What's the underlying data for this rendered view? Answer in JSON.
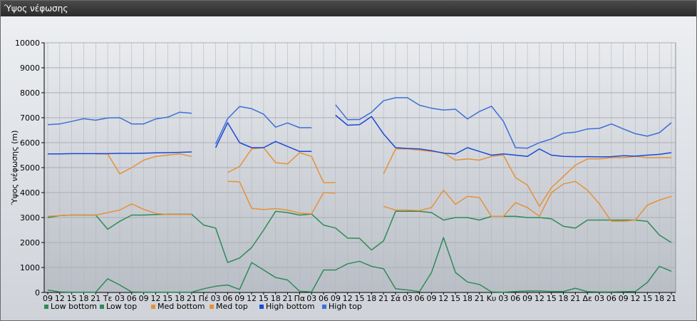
{
  "window": {
    "title": "Ύψος νέφωσης"
  },
  "chart_data": {
    "type": "line",
    "ylabel": "Ύψος νέφωσης (m)",
    "ylim": [
      0,
      10000
    ],
    "yticks": [
      0,
      1000,
      2000,
      3000,
      4000,
      5000,
      6000,
      7000,
      8000,
      9000,
      10000
    ],
    "grid": true,
    "legend_position": "bottom-left",
    "categories": [
      "09",
      "12",
      "15",
      "18",
      "21",
      "Τε",
      "03",
      "06",
      "09",
      "12",
      "15",
      "18",
      "21",
      "Πέ",
      "03",
      "06",
      "09",
      "12",
      "15",
      "18",
      "21",
      "Πα",
      "03",
      "06",
      "09",
      "12",
      "15",
      "18",
      "21",
      "Σά",
      "03",
      "06",
      "09",
      "12",
      "15",
      "18",
      "21",
      "Κυ",
      "03",
      "06",
      "09",
      "12",
      "15",
      "18",
      "21",
      "Δε",
      "03",
      "06",
      "09",
      "12",
      "15",
      "18",
      "21"
    ],
    "series": [
      {
        "name": "Low bottom",
        "color": "#2e8b57",
        "values": [
          100,
          20,
          10,
          10,
          10,
          550,
          300,
          20,
          10,
          10,
          10,
          10,
          10,
          150,
          250,
          300,
          120,
          1200,
          900,
          600,
          500,
          50,
          20,
          900,
          900,
          1150,
          1250,
          1050,
          950,
          150,
          100,
          30,
          800,
          2200,
          800,
          420,
          320,
          20,
          10,
          40,
          60,
          60,
          40,
          40,
          170,
          30,
          20,
          20,
          30,
          40,
          400,
          1050,
          850
        ]
      },
      {
        "name": "Low top",
        "color": "#2e8b57",
        "values": [
          3000,
          3080,
          3100,
          3100,
          3100,
          2530,
          2850,
          3100,
          3100,
          3120,
          3130,
          3130,
          3130,
          2700,
          2580,
          1200,
          1380,
          1800,
          2500,
          3250,
          3200,
          3100,
          3140,
          2700,
          2580,
          2180,
          2170,
          1700,
          2070,
          3250,
          3250,
          3250,
          3200,
          2900,
          3000,
          3000,
          2900,
          3050,
          3050,
          3050,
          3000,
          3000,
          2950,
          2650,
          2580,
          2900,
          2900,
          2900,
          2900,
          2900,
          2850,
          2300,
          2000
        ]
      },
      {
        "name": "Med bottom",
        "color": "#e69138",
        "values": [
          3050,
          3080,
          3100,
          3100,
          3100,
          3200,
          3300,
          3550,
          3330,
          3170,
          3120,
          3120,
          3120,
          null,
          null,
          4450,
          4430,
          3370,
          3320,
          3360,
          3300,
          3180,
          3150,
          4000,
          3980,
          null,
          null,
          null,
          3450,
          3300,
          3300,
          3280,
          3400,
          4100,
          3530,
          3850,
          3800,
          3050,
          3050,
          3600,
          3400,
          3050,
          4000,
          4350,
          4450,
          4100,
          3550,
          2850,
          2850,
          2900,
          3500,
          3700,
          3850
        ]
      },
      {
        "name": "Med top",
        "color": "#e69138",
        "values": [
          null,
          null,
          null,
          null,
          5550,
          5550,
          4750,
          5000,
          5300,
          5450,
          5500,
          5550,
          5450,
          null,
          null,
          4800,
          5050,
          5750,
          5800,
          5200,
          5150,
          5600,
          5450,
          4400,
          4400,
          null,
          null,
          null,
          4750,
          5750,
          5750,
          5700,
          5650,
          5600,
          5300,
          5350,
          5300,
          5450,
          5500,
          4600,
          4300,
          3450,
          4200,
          4650,
          5100,
          5350,
          5350,
          5400,
          5400,
          5450,
          5400,
          5400,
          5400
        ]
      },
      {
        "name": "High bottom",
        "color": "#1c49d6",
        "values": [
          5550,
          5550,
          5560,
          5560,
          5560,
          5560,
          5570,
          5570,
          5580,
          5590,
          5600,
          5610,
          5630,
          null,
          5800,
          6800,
          6000,
          5800,
          5800,
          6050,
          5850,
          5650,
          5650,
          null,
          7100,
          6700,
          6720,
          7050,
          6350,
          5800,
          5770,
          5750,
          5680,
          5580,
          5550,
          5800,
          5650,
          5500,
          5550,
          5500,
          5450,
          5750,
          5500,
          5450,
          5440,
          5440,
          5430,
          5440,
          5480,
          5460,
          5500,
          5530,
          5600
        ]
      },
      {
        "name": "High top",
        "color": "#3c6fd8",
        "values": [
          6720,
          6750,
          6850,
          6960,
          6900,
          6990,
          7000,
          6750,
          6750,
          6950,
          7020,
          7220,
          7180,
          null,
          5950,
          6960,
          7450,
          7360,
          7140,
          6620,
          6790,
          6600,
          6600,
          null,
          7520,
          6920,
          6930,
          7220,
          7680,
          7800,
          7800,
          7500,
          7380,
          7310,
          7340,
          6950,
          7250,
          7460,
          6850,
          5800,
          5780,
          6000,
          6150,
          6380,
          6420,
          6550,
          6570,
          6750,
          6550,
          6360,
          6260,
          6400,
          6800
        ]
      }
    ]
  }
}
